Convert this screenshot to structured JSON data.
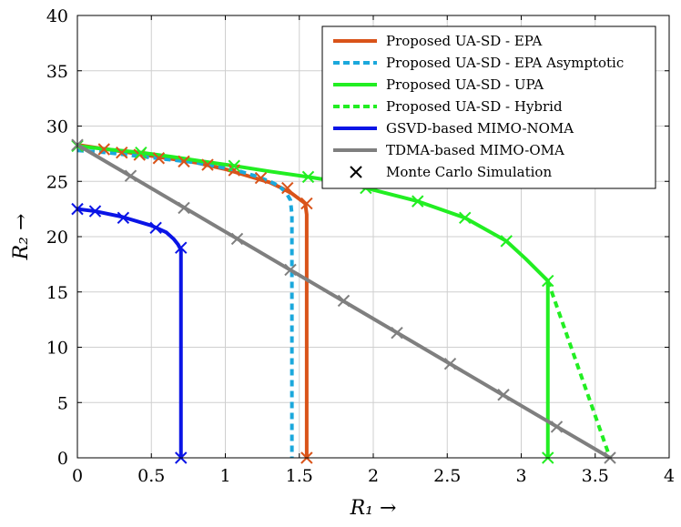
{
  "chart_data": {
    "type": "line",
    "title": "",
    "xlabel": "R₁ →",
    "ylabel": "R₂ →",
    "xlim": [
      0,
      4
    ],
    "ylim": [
      0,
      40
    ],
    "xticks": [
      "0",
      "0.5",
      "1",
      "1.5",
      "2",
      "2.5",
      "3",
      "3.5",
      "4"
    ],
    "yticks": [
      "0",
      "5",
      "10",
      "15",
      "20",
      "25",
      "30",
      "35",
      "40"
    ],
    "grid": true,
    "legend_position": "top-right",
    "series": [
      {
        "name": "Proposed UA-SD - EPA",
        "color": "#d95319",
        "dash": "solid",
        "x": [
          0,
          0.1,
          0.2,
          0.3,
          0.4,
          0.5,
          0.6,
          0.7,
          0.8,
          0.9,
          1.0,
          1.1,
          1.2,
          1.3,
          1.38,
          1.45,
          1.5,
          1.54,
          1.55,
          1.55
        ],
        "y": [
          28.3,
          28.1,
          27.9,
          27.7,
          27.5,
          27.3,
          27.1,
          26.9,
          26.7,
          26.4,
          26.1,
          25.7,
          25.3,
          24.9,
          24.4,
          23.9,
          23.4,
          23.0,
          22.0,
          0
        ]
      },
      {
        "name": "Proposed UA-SD - EPA Asymptotic",
        "color": "#1ba8dc",
        "dash": "dashed",
        "x": [
          0,
          0.2,
          0.4,
          0.6,
          0.8,
          1.0,
          1.1,
          1.2,
          1.3,
          1.36,
          1.41,
          1.44,
          1.45,
          1.45
        ],
        "y": [
          27.8,
          27.6,
          27.3,
          27.0,
          26.7,
          26.2,
          25.9,
          25.5,
          25.0,
          24.6,
          24.0,
          23.3,
          22.0,
          0
        ]
      },
      {
        "name": "Proposed UA-SD - UPA",
        "color": "#22ee22",
        "dash": "solid",
        "x": [
          0,
          0.2,
          0.43,
          0.65,
          0.85,
          1.06,
          1.3,
          1.56,
          1.75,
          1.95,
          2.3,
          2.62,
          2.9,
          3.03,
          3.18,
          3.18
        ],
        "y": [
          28.2,
          27.9,
          27.6,
          27.2,
          26.8,
          26.4,
          25.9,
          25.4,
          25.0,
          24.4,
          23.2,
          21.7,
          19.6,
          18.0,
          16.0,
          0
        ]
      },
      {
        "name": "Proposed UA-SD - Hybrid",
        "color": "#22ee22",
        "dash": "dashed",
        "x": [
          3.18,
          3.6
        ],
        "y": [
          16.0,
          0
        ]
      },
      {
        "name": "GSVD-based MIMO-NOMA",
        "color": "#0a14e6",
        "dash": "solid",
        "x": [
          0,
          0.12,
          0.3,
          0.5,
          0.6,
          0.65,
          0.68,
          0.7,
          0.7
        ],
        "y": [
          22.5,
          22.3,
          21.8,
          21.0,
          20.4,
          19.8,
          19.3,
          18.8,
          0
        ]
      },
      {
        "name": "TDMA-based MIMO-OMA",
        "color": "#7f7f7f",
        "dash": "solid",
        "x": [
          0,
          3.6
        ],
        "y": [
          28.3,
          0
        ]
      },
      {
        "name": "Monte Carlo Simulation",
        "color": "#000000",
        "dash": "none",
        "marker": "x",
        "x": [],
        "y": []
      }
    ],
    "markers": [
      {
        "color": "#d95319",
        "x": [
          0.18,
          0.3,
          0.42,
          0.55,
          0.72,
          0.88,
          1.06,
          1.24,
          1.42,
          1.55,
          1.55
        ],
        "y": [
          27.9,
          27.6,
          27.4,
          27.1,
          26.8,
          26.5,
          26.0,
          25.3,
          24.4,
          23.0,
          0
        ]
      },
      {
        "color": "#22ee22",
        "x": [
          0,
          0.43,
          1.06,
          1.56,
          1.95,
          2.3,
          2.62,
          2.9,
          3.18,
          3.18
        ],
        "y": [
          28.2,
          27.6,
          26.4,
          25.4,
          24.4,
          23.2,
          21.7,
          19.6,
          16.0,
          0
        ]
      },
      {
        "color": "#0a14e6",
        "x": [
          0,
          0.12,
          0.31,
          0.53,
          0.7,
          0.7
        ],
        "y": [
          22.5,
          22.3,
          21.7,
          20.8,
          19.0,
          0
        ]
      },
      {
        "color": "#7f7f7f",
        "x": [
          0,
          0.36,
          0.72,
          1.08,
          1.44,
          1.8,
          2.16,
          2.52,
          2.88,
          3.24,
          3.6
        ],
        "y": [
          28.3,
          25.5,
          22.6,
          19.8,
          17.0,
          14.2,
          11.3,
          8.5,
          5.7,
          2.8,
          0
        ]
      }
    ]
  }
}
